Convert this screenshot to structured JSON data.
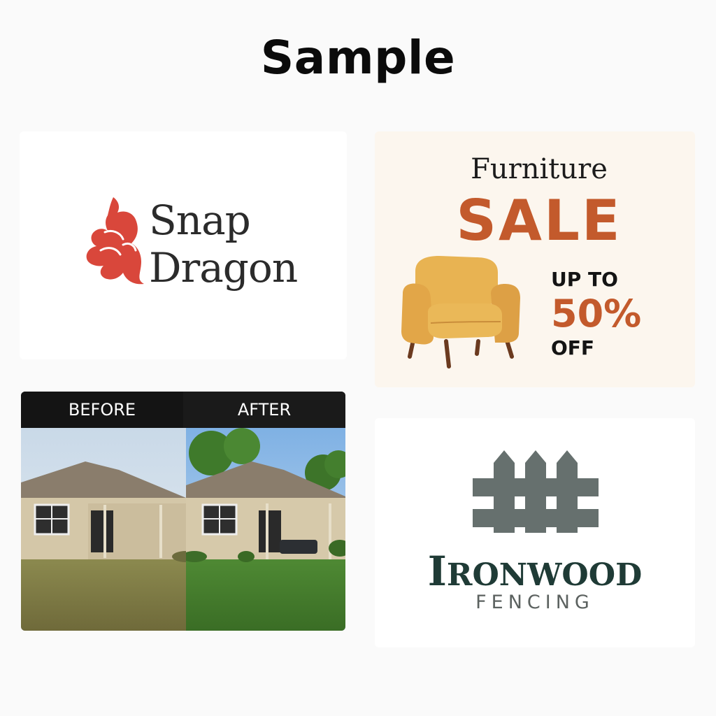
{
  "title": "Sample",
  "snap_dragon": {
    "line1": "Snap",
    "line2": "Dragon",
    "logo_icon": "snapdragon-flower-icon",
    "brand_color": "#d9473b"
  },
  "furniture": {
    "heading": "Furniture",
    "sale": "SALE",
    "up_to": "UP TO",
    "percent": "50%",
    "off": "OFF",
    "accent_color": "#c35a2c",
    "chair_color": "#e2ac4c"
  },
  "before_after": {
    "before_label": "BEFORE",
    "after_label": "AFTER"
  },
  "ironwood": {
    "name_initial": "I",
    "name_rest": "RONWOOD",
    "tagline": "FENCING",
    "fence_icon": "picket-fence-icon",
    "brand_color": "#1f3b36",
    "fence_color": "#66706e"
  }
}
